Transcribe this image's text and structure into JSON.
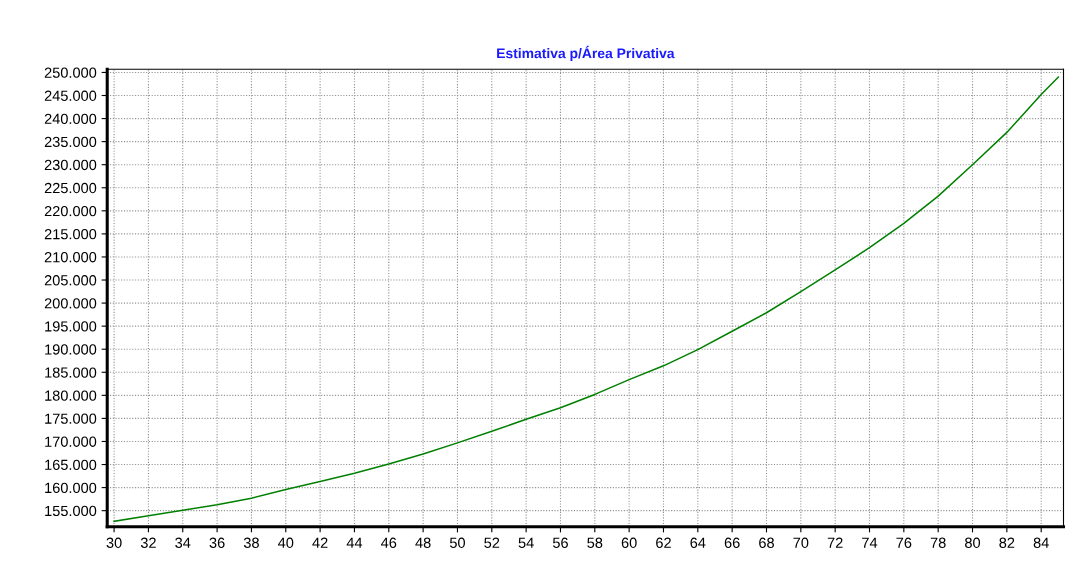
{
  "chart_data": {
    "type": "line",
    "title": "Estimativa p/Área Privativa",
    "x": [
      30,
      32,
      34,
      36,
      38,
      40,
      42,
      44,
      46,
      48,
      50,
      52,
      54,
      56,
      58,
      60,
      62,
      64,
      66,
      68,
      70,
      72,
      74,
      76,
      78,
      80,
      82,
      84,
      85
    ],
    "series": [
      {
        "color": "#008000",
        "values": [
          152700,
          153900,
          155100,
          156300,
          157700,
          159600,
          161300,
          163100,
          165100,
          167300,
          169700,
          172200,
          174800,
          177300,
          180200,
          183400,
          186400,
          189900,
          193900,
          197900,
          202500,
          207200,
          212000,
          217300,
          223200,
          230000,
          237000,
          245200,
          249000
        ]
      }
    ],
    "xlim": [
      29.6,
      85.3
    ],
    "xticks": [
      30,
      32,
      34,
      36,
      38,
      40,
      42,
      44,
      46,
      48,
      50,
      52,
      54,
      56,
      58,
      60,
      62,
      64,
      66,
      68,
      70,
      72,
      74,
      76,
      78,
      80,
      82,
      84
    ],
    "ylim": [
      151500,
      250700
    ],
    "yticks": [
      {
        "value": 155000,
        "label": "155.000"
      },
      {
        "value": 160000,
        "label": "160.000"
      },
      {
        "value": 165000,
        "label": "165.000"
      },
      {
        "value": 170000,
        "label": "170.000"
      },
      {
        "value": 175000,
        "label": "175.000"
      },
      {
        "value": 180000,
        "label": "180.000"
      },
      {
        "value": 185000,
        "label": "185.000"
      },
      {
        "value": 190000,
        "label": "190.000"
      },
      {
        "value": 195000,
        "label": "195.000"
      },
      {
        "value": 200000,
        "label": "200.000"
      },
      {
        "value": 205000,
        "label": "205.000"
      },
      {
        "value": 210000,
        "label": "210.000"
      },
      {
        "value": 215000,
        "label": "215.000"
      },
      {
        "value": 220000,
        "label": "220.000"
      },
      {
        "value": 225000,
        "label": "225.000"
      },
      {
        "value": 230000,
        "label": "230.000"
      },
      {
        "value": 235000,
        "label": "235.000"
      },
      {
        "value": 240000,
        "label": "240.000"
      },
      {
        "value": 245000,
        "label": "245.000"
      },
      {
        "value": 250000,
        "label": "250.000"
      }
    ],
    "grid": true,
    "marker": "none",
    "line_style": "solid"
  }
}
